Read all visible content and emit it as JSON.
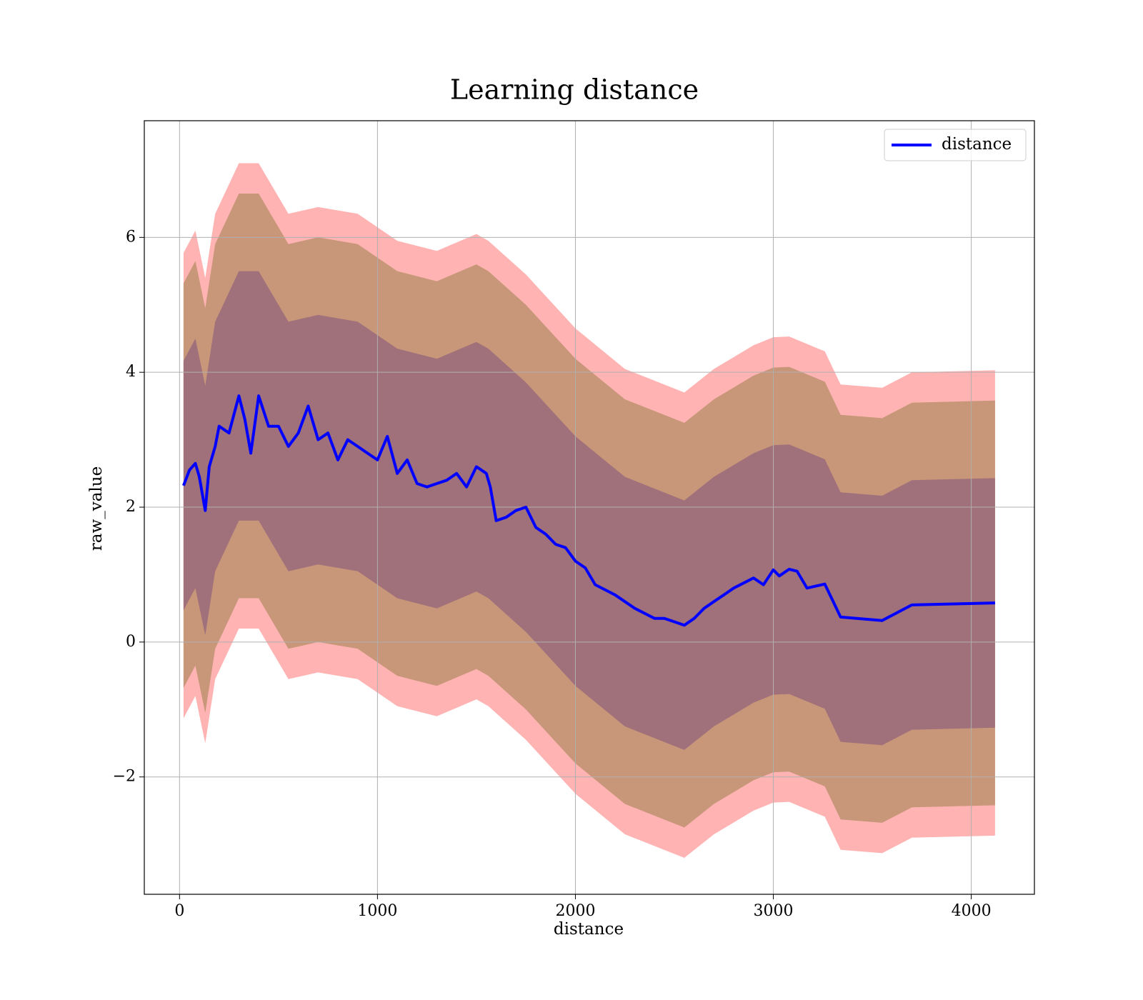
{
  "chart_data": {
    "type": "line",
    "title": "Learning distance",
    "xlabel": "distance",
    "ylabel": "raw_value",
    "xlim": [
      -178,
      4319
    ],
    "ylim": [
      -3.74,
      7.73
    ],
    "xticks": [
      0,
      1000,
      2000,
      3000,
      4000
    ],
    "yticks": [
      {
        "value": -2,
        "label": "−2"
      },
      0,
      2,
      4,
      6
    ],
    "grid": true,
    "legend": "upper right",
    "series": [
      {
        "name": "distance",
        "color": "#0000ff",
        "x": [
          20,
          50,
          80,
          100,
          130,
          150,
          180,
          200,
          250,
          300,
          330,
          360,
          400,
          450,
          500,
          550,
          600,
          650,
          700,
          750,
          800,
          850,
          900,
          950,
          1000,
          1050,
          1100,
          1150,
          1200,
          1250,
          1300,
          1350,
          1400,
          1450,
          1500,
          1550,
          1570,
          1600,
          1650,
          1700,
          1750,
          1800,
          1850,
          1900,
          1950,
          2000,
          2050,
          2100,
          2200,
          2300,
          2400,
          2450,
          2500,
          2550,
          2600,
          2650,
          2700,
          2750,
          2800,
          2900,
          2950,
          3000,
          3030,
          3080,
          3120,
          3170,
          3260,
          3340,
          3550,
          3700,
          4120
        ],
        "values": [
          2.32,
          2.55,
          2.65,
          2.45,
          1.95,
          2.6,
          2.9,
          3.2,
          3.1,
          3.65,
          3.3,
          2.8,
          3.65,
          3.2,
          3.2,
          2.9,
          3.1,
          3.5,
          3.0,
          3.1,
          2.7,
          3.0,
          2.9,
          2.8,
          2.7,
          3.05,
          2.5,
          2.7,
          2.35,
          2.3,
          2.35,
          2.4,
          2.5,
          2.3,
          2.6,
          2.5,
          2.3,
          1.8,
          1.85,
          1.95,
          2.0,
          1.7,
          1.6,
          1.45,
          1.4,
          1.2,
          1.1,
          0.85,
          0.7,
          0.5,
          0.35,
          0.35,
          0.3,
          0.25,
          0.35,
          0.5,
          0.6,
          0.7,
          0.8,
          0.95,
          0.85,
          1.07,
          0.98,
          1.08,
          1.05,
          0.8,
          0.86,
          0.37,
          0.32,
          0.55,
          0.58
        ]
      }
    ],
    "bands": [
      {
        "color": "#ffb3b3",
        "x": [
          20,
          80,
          130,
          180,
          300,
          400,
          550,
          700,
          900,
          1100,
          1300,
          1500,
          1560,
          1750,
          2000,
          2250,
          2550,
          2700,
          2900,
          3000,
          3080,
          3260,
          3340,
          3550,
          3700,
          4120
        ],
        "upper": [
          5.77,
          6.1,
          5.4,
          6.35,
          7.1,
          7.1,
          6.35,
          6.45,
          6.35,
          5.95,
          5.8,
          6.05,
          5.95,
          5.45,
          4.65,
          4.05,
          3.7,
          4.05,
          4.4,
          4.52,
          4.53,
          4.31,
          3.82,
          3.77,
          4.0,
          4.03
        ],
        "lower": [
          -1.13,
          -0.8,
          -1.5,
          -0.55,
          0.2,
          0.2,
          -0.55,
          -0.45,
          -0.55,
          -0.95,
          -1.1,
          -0.85,
          -0.95,
          -1.45,
          -2.25,
          -2.85,
          -3.2,
          -2.85,
          -2.5,
          -2.38,
          -2.37,
          -2.59,
          -3.08,
          -3.13,
          -2.9,
          -2.87
        ]
      },
      {
        "color": "#c89679",
        "x": [
          20,
          80,
          130,
          180,
          300,
          400,
          550,
          700,
          900,
          1100,
          1300,
          1500,
          1560,
          1750,
          2000,
          2250,
          2550,
          2700,
          2900,
          3000,
          3080,
          3260,
          3340,
          3550,
          3700,
          4120
        ],
        "upper": [
          5.32,
          5.65,
          4.95,
          5.9,
          6.65,
          6.65,
          5.9,
          6.0,
          5.9,
          5.5,
          5.35,
          5.6,
          5.5,
          5.0,
          4.2,
          3.6,
          3.25,
          3.6,
          3.95,
          4.07,
          4.08,
          3.86,
          3.37,
          3.32,
          3.55,
          3.58
        ],
        "lower": [
          -0.68,
          -0.35,
          -1.05,
          -0.1,
          0.65,
          0.65,
          -0.1,
          0.0,
          -0.1,
          -0.5,
          -0.65,
          -0.4,
          -0.5,
          -1.0,
          -1.8,
          -2.4,
          -2.75,
          -2.4,
          -2.05,
          -1.93,
          -1.92,
          -2.14,
          -2.63,
          -2.68,
          -2.45,
          -2.42
        ]
      },
      {
        "color": "#a0717b",
        "x": [
          20,
          80,
          130,
          180,
          300,
          400,
          550,
          700,
          900,
          1100,
          1300,
          1500,
          1560,
          1750,
          2000,
          2250,
          2550,
          2700,
          2900,
          3000,
          3080,
          3260,
          3340,
          3550,
          3700,
          4120
        ],
        "upper": [
          4.17,
          4.5,
          3.8,
          4.75,
          5.5,
          5.5,
          4.75,
          4.85,
          4.75,
          4.35,
          4.2,
          4.45,
          4.35,
          3.85,
          3.05,
          2.45,
          2.1,
          2.45,
          2.8,
          2.92,
          2.93,
          2.71,
          2.22,
          2.17,
          2.4,
          2.43
        ],
        "lower": [
          0.47,
          0.8,
          0.1,
          1.05,
          1.8,
          1.8,
          1.05,
          1.15,
          1.05,
          0.65,
          0.5,
          0.75,
          0.65,
          0.15,
          -0.65,
          -1.25,
          -1.6,
          -1.25,
          -0.9,
          -0.78,
          -0.77,
          -0.99,
          -1.48,
          -1.53,
          -1.3,
          -1.27
        ]
      }
    ]
  }
}
